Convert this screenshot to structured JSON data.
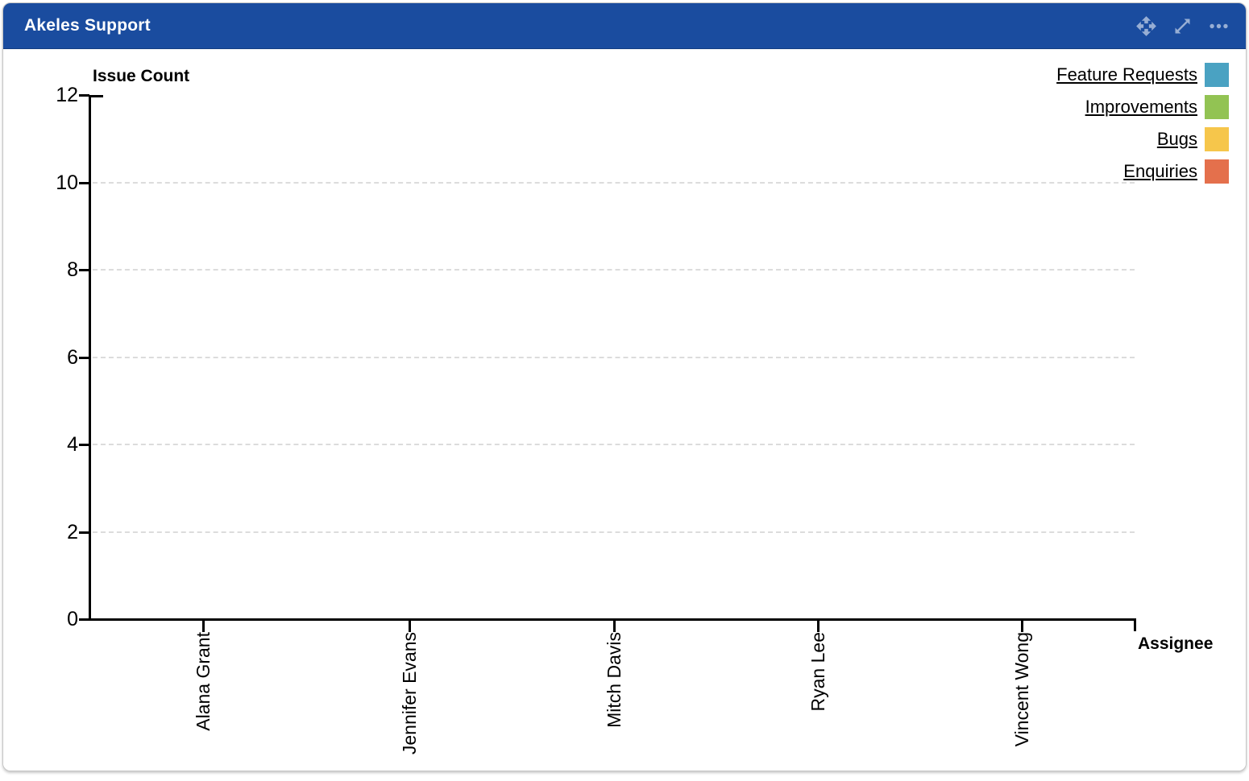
{
  "window": {
    "title": "Akeles Support"
  },
  "header": {
    "icons": [
      "move-icon",
      "expand-icon",
      "more-options-icon"
    ]
  },
  "chart_data": {
    "type": "bar",
    "title": "",
    "y_axis_title": "Issue Count",
    "x_axis_title": "Assignee",
    "categories": [
      "Alana Grant",
      "Jennifer Evans",
      "Mitch Davis",
      "Ryan Lee",
      "Vincent Wong"
    ],
    "series": [
      {
        "name": "Feature Requests",
        "color": "#4aa2c2",
        "values": [
          0,
          0,
          0,
          0,
          0
        ]
      },
      {
        "name": "Improvements",
        "color": "#92c353",
        "values": [
          0,
          0,
          0,
          0,
          0
        ]
      },
      {
        "name": "Bugs",
        "color": "#f6c64b",
        "values": [
          0,
          0,
          0,
          0,
          0
        ]
      },
      {
        "name": "Enquiries",
        "color": "#e4704c",
        "values": [
          0,
          0,
          0,
          0,
          0
        ]
      }
    ],
    "ylim": [
      0,
      12
    ],
    "yticks": [
      0,
      2,
      4,
      6,
      8,
      10,
      12
    ],
    "grid": "horizontal-dashed",
    "gridline_values": [
      2,
      4,
      6,
      8,
      10
    ],
    "legend_position": "top-right",
    "x_label_rotation": -90,
    "colors": {
      "header": "#1a4c9f",
      "axis": "#000000",
      "grid": "#dcdcdc"
    }
  }
}
